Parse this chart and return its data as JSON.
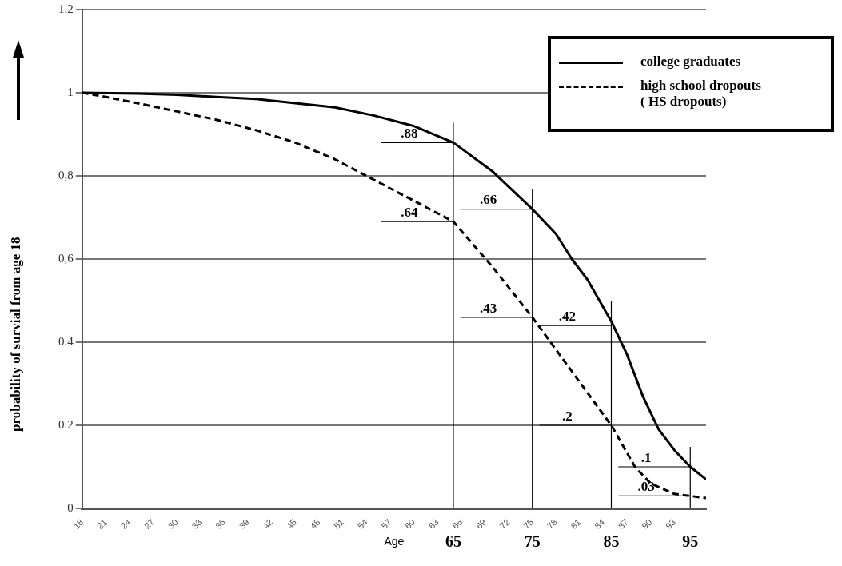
{
  "chart_data": {
    "type": "line",
    "xlabel": "Age",
    "ylabel": "probability of survial from age 18",
    "xlim": [
      18,
      97
    ],
    "xticks": [
      18,
      21,
      24,
      27,
      30,
      33,
      36,
      39,
      42,
      45,
      48,
      51,
      54,
      57,
      60,
      63,
      66,
      69,
      72,
      75,
      78,
      81,
      84,
      87,
      90,
      93
    ],
    "ylim": [
      0,
      1.2
    ],
    "yticks": [
      0,
      {
        "value": 0.2,
        "label": "0.2"
      },
      {
        "value": 0.4,
        "label": "0.4"
      },
      {
        "value": 0.6,
        "label": "0,6"
      },
      {
        "value": 0.8,
        "label": "0,8"
      },
      1,
      1.2
    ],
    "grid": "y",
    "legend": "top right",
    "marker": "none",
    "series": [
      {
        "name": "college graduates",
        "color": "#000000",
        "line_style": "solid",
        "x": [
          18,
          25,
          30,
          35,
          40,
          45,
          50,
          55,
          60,
          65,
          70,
          75,
          78,
          80,
          82,
          85,
          87,
          89,
          91,
          93,
          95,
          97
        ],
        "values": [
          1.0,
          0.998,
          0.995,
          0.99,
          0.985,
          0.975,
          0.965,
          0.945,
          0.92,
          0.88,
          0.81,
          0.72,
          0.66,
          0.6,
          0.55,
          0.45,
          0.37,
          0.27,
          0.19,
          0.14,
          0.1,
          0.07
        ]
      },
      {
        "name": "high school dropouts\n( HS dropouts)",
        "color": "#000000",
        "line_style": "dashed",
        "x": [
          18,
          21,
          25,
          30,
          35,
          40,
          45,
          50,
          55,
          60,
          65,
          70,
          75,
          80,
          85,
          88,
          90,
          93,
          95,
          97
        ],
        "values": [
          1.0,
          0.99,
          0.975,
          0.955,
          0.935,
          0.91,
          0.88,
          0.84,
          0.79,
          0.74,
          0.69,
          0.58,
          0.46,
          0.33,
          0.2,
          0.1,
          0.06,
          0.035,
          0.03,
          0.025
        ]
      }
    ],
    "ref_lines": [
      {
        "axis": "x",
        "value": 65,
        "label": "65"
      },
      {
        "axis": "x",
        "value": 75,
        "label": "75"
      },
      {
        "axis": "x",
        "value": 85,
        "label": "85"
      },
      {
        "axis": "x",
        "value": 95,
        "label": "95"
      }
    ],
    "annotations": [
      {
        "text": ".88",
        "x": 65,
        "y": 0.88
      },
      {
        "text": ".64",
        "x": 65,
        "y": 0.69
      },
      {
        "text": ".66",
        "x": 75,
        "y": 0.72
      },
      {
        "text": ".43",
        "x": 75,
        "y": 0.46
      },
      {
        "text": ".42",
        "x": 85,
        "y": 0.44
      },
      {
        "text": ".2",
        "x": 85,
        "y": 0.2
      },
      {
        "text": ".1",
        "x": 95,
        "y": 0.1
      },
      {
        "text": ".03",
        "x": 95,
        "y": 0.03
      }
    ]
  }
}
